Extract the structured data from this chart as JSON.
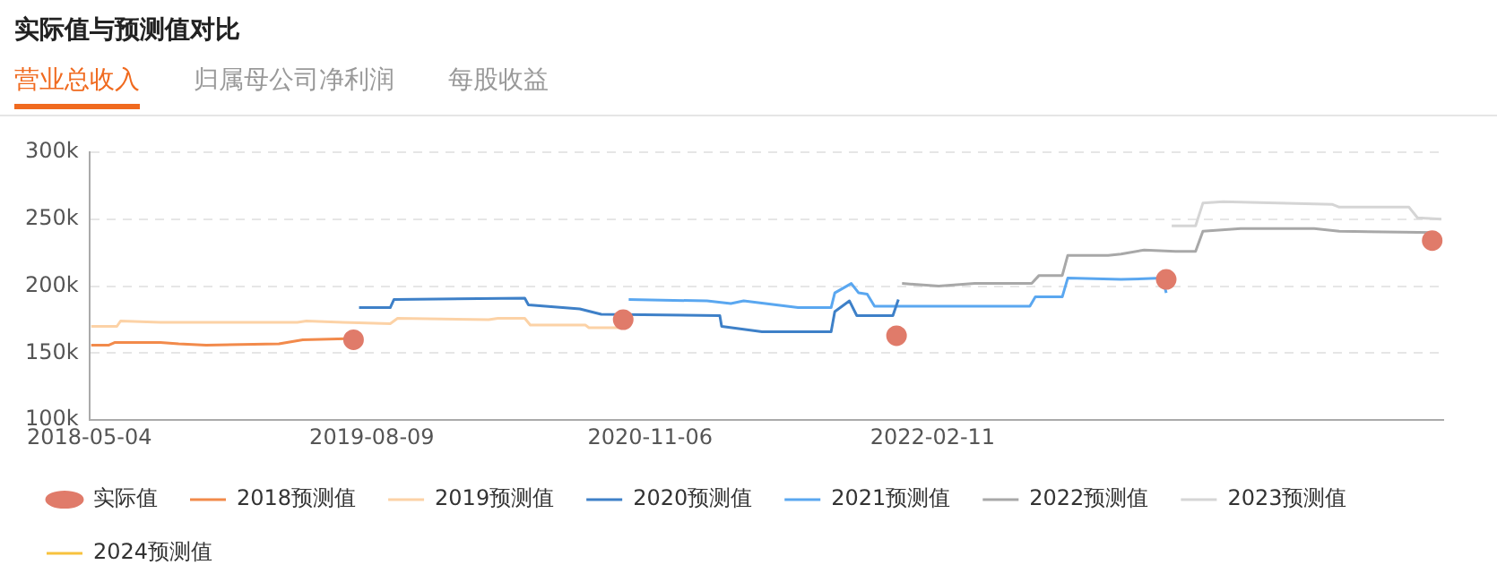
{
  "chart_data": {
    "type": "line",
    "title": "实际值与预测值对比",
    "subtitle": "营业总收入",
    "annotations": [
      "归属母公司净利润",
      "每股收益"
    ],
    "xlim": [
      "2018-05-04",
      "2024-05-26"
    ],
    "xticks": [
      "2018-05-04",
      "2019-08-09",
      "2020-11-06",
      "2022-02-11"
    ],
    "ylim": [
      100000,
      300000
    ],
    "yticks": [
      {
        "value": 100000,
        "label": "100k"
      },
      {
        "value": 150000,
        "label": "150k"
      },
      {
        "value": 200000,
        "label": "200k"
      },
      {
        "value": 250000,
        "label": "250k"
      },
      {
        "value": 300000,
        "label": "300k"
      }
    ],
    "grid": "y",
    "legend": "bottom",
    "marker": "none",
    "line_style": "solid",
    "series": [
      {
        "name": "实际值",
        "type": "scatter",
        "marker": "circle",
        "color": "#e07b6a",
        "x": [
          "2019-07-10",
          "2020-09-23",
          "2021-12-14",
          "2023-02-28",
          "2024-05-08"
        ],
        "values": [
          160000,
          175000,
          163000,
          205000,
          234000
        ]
      },
      {
        "name": "2018预测值",
        "color": "#f28a4b",
        "x": [
          "2018-05-07",
          "2018-06-05",
          "2018-06-15",
          "2018-08-28",
          "2018-09-27",
          "2018-11-11",
          "2019-03-10",
          "2019-04-18",
          "2019-07-13"
        ],
        "values": [
          156000,
          156000,
          158000,
          158000,
          157000,
          156000,
          157000,
          160000,
          161000
        ]
      },
      {
        "name": "2019预测值",
        "color": "#fcd2a6",
        "x": [
          "2018-05-07",
          "2018-06-18",
          "2018-06-24",
          "2018-08-28",
          "2019-04-09",
          "2019-04-24",
          "2019-06-22",
          "2019-09-08",
          "2019-09-20",
          "2020-02-16",
          "2020-03-02",
          "2020-04-15",
          "2020-04-24",
          "2020-07-23",
          "2020-07-29",
          "2020-09-26"
        ],
        "values": [
          170000,
          170000,
          174000,
          173000,
          173000,
          174000,
          173000,
          172000,
          176000,
          175000,
          176000,
          176000,
          171000,
          171000,
          169000,
          169000
        ]
      },
      {
        "name": "2020预测值",
        "color": "#3e80c8",
        "x": [
          "2019-07-19",
          "2019-09-08",
          "2019-09-14",
          "2020-04-15",
          "2020-04-21",
          "2020-07-14",
          "2020-08-18",
          "2021-02-28",
          "2021-03-03",
          "2021-05-08",
          "2021-08-29",
          "2021-09-04",
          "2021-09-28",
          "2021-10-10",
          "2021-12-08",
          "2021-12-17"
        ],
        "values": [
          184000,
          184000,
          190000,
          191000,
          186000,
          183000,
          179000,
          178000,
          170000,
          166000,
          166000,
          181000,
          189000,
          178000,
          178000,
          190000
        ]
      },
      {
        "name": "2021预测值",
        "color": "#5aa7f0",
        "x": [
          "2020-10-02",
          "2021-02-07",
          "2021-03-18",
          "2021-04-08",
          "2021-07-06",
          "2021-08-29",
          "2021-09-04",
          "2021-10-01",
          "2021-10-13",
          "2021-10-27",
          "2021-11-08",
          "2022-07-20",
          "2022-07-29",
          "2022-09-11",
          "2022-09-20",
          "2022-12-16",
          "2023-02-22",
          "2023-02-28"
        ],
        "values": [
          190000,
          189000,
          187000,
          189000,
          184000,
          184000,
          195000,
          202000,
          195000,
          194000,
          185000,
          185000,
          192000,
          192000,
          206000,
          205000,
          206000,
          195000
        ]
      },
      {
        "name": "2022预测值",
        "color": "#a8a8a8",
        "x": [
          "2021-12-23",
          "2022-02-21",
          "2022-04-21",
          "2022-07-23",
          "2022-08-04",
          "2022-09-11",
          "2022-09-20",
          "2022-11-25",
          "2022-12-16",
          "2023-01-23",
          "2023-03-15",
          "2023-04-17",
          "2023-04-29",
          "2023-06-30",
          "2023-10-28",
          "2023-12-08",
          "2024-05-14"
        ],
        "values": [
          202000,
          200000,
          202000,
          202000,
          208000,
          208000,
          223000,
          223000,
          224000,
          227000,
          226000,
          226000,
          241000,
          243000,
          243000,
          241000,
          240000
        ]
      },
      {
        "name": "2023预测值",
        "color": "#d5d5d5",
        "x": [
          "2023-03-09",
          "2023-04-17",
          "2023-04-29",
          "2023-06-01",
          "2023-11-27",
          "2023-12-08",
          "2024-03-31",
          "2024-04-14",
          "2024-05-23"
        ],
        "values": [
          245000,
          245000,
          262000,
          263000,
          261000,
          259000,
          259000,
          251000,
          250000
        ]
      },
      {
        "name": "2024预测值",
        "color": "#f7c23e"
      }
    ]
  }
}
